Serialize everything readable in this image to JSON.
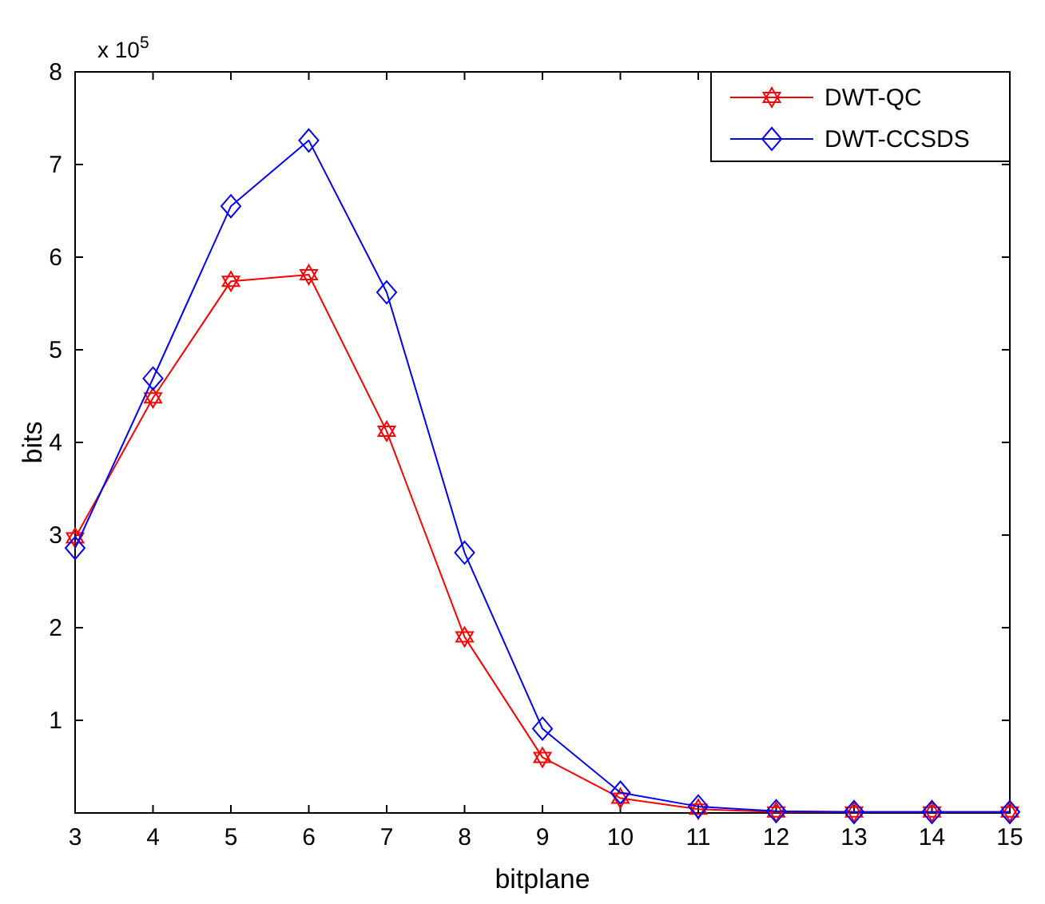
{
  "chart_data": {
    "type": "line",
    "xlabel": "bitplane",
    "ylabel": "bits",
    "annotations": [
      "x 10$^{5}$"
    ],
    "x": [
      3,
      4,
      5,
      6,
      7,
      8,
      9,
      10,
      11,
      12,
      13,
      14,
      15
    ],
    "series": [
      {
        "name": "DWT-QC",
        "color": "#ff0000",
        "marker": "star",
        "values": [
          2.97,
          4.48,
          5.74,
          5.81,
          4.12,
          1.9,
          0.6,
          0.16,
          0.04,
          0.01,
          0.01,
          0.01,
          0.01
        ]
      },
      {
        "name": "DWT-CCSDS",
        "color": "#0000ff",
        "marker": "diamond",
        "values": [
          2.86,
          4.69,
          6.55,
          7.26,
          5.62,
          2.81,
          0.91,
          0.22,
          0.07,
          0.02,
          0.01,
          0.01,
          0.01
        ]
      }
    ],
    "xlim": [
      3,
      15
    ],
    "xticks": [
      3,
      4,
      5,
      6,
      7,
      8,
      9,
      10,
      11,
      12,
      13,
      14,
      15
    ],
    "ylim": [
      0,
      8
    ],
    "yticks": [
      1,
      2,
      3,
      4,
      5,
      6,
      7,
      8
    ],
    "grid": false,
    "legend": "top right",
    "line_style": "solid"
  }
}
